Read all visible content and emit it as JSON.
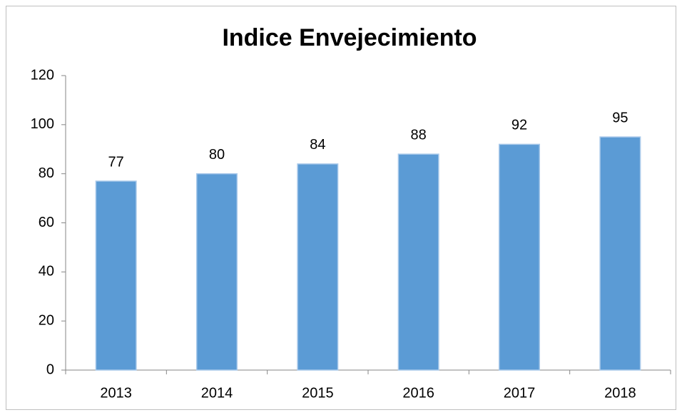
{
  "chart_data": {
    "type": "bar",
    "title": "Indice Envejecimiento",
    "categories": [
      "2013",
      "2014",
      "2015",
      "2016",
      "2017",
      "2018"
    ],
    "values": [
      77,
      80,
      84,
      88,
      92,
      95
    ],
    "color": "#5b9bd5",
    "ylim": [
      0,
      120
    ],
    "yticks": [
      0,
      20,
      40,
      60,
      80,
      100,
      120
    ],
    "grid": false
  }
}
